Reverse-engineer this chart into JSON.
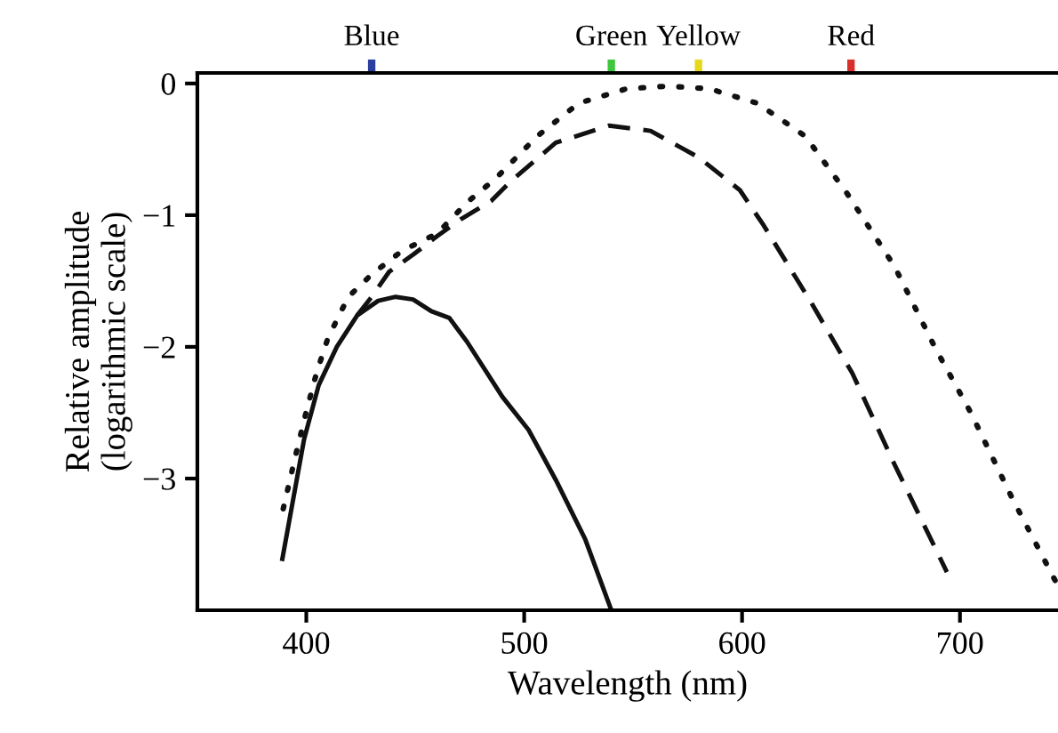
{
  "chart_data": {
    "type": "line",
    "xlabel": "Wavelength (nm)",
    "ylabel": "Relative amplitude\n(logarithmic scale)",
    "xlim": [
      350,
      745
    ],
    "xticks": [
      400,
      500,
      600,
      700
    ],
    "ylim": [
      -4,
      0.08
    ],
    "yticks": [
      0,
      {
        "value": -1,
        "label": "−1"
      },
      {
        "value": -2,
        "label": "−2"
      },
      {
        "value": -3,
        "label": "−3"
      }
    ],
    "ref_lines": [
      {
        "axis": "x",
        "value": 430,
        "label": "Blue",
        "color": "#2b3f9e"
      },
      {
        "axis": "x",
        "value": 540,
        "label": "Green",
        "color": "#3fc63f"
      },
      {
        "axis": "x",
        "value": 580,
        "label": "Yellow",
        "color": "#e6d81e"
      },
      {
        "axis": "x",
        "value": 650,
        "label": "Red",
        "color": "#d8302a"
      }
    ],
    "grid": false,
    "legend": false,
    "marker": "none",
    "series": [
      {
        "color": "#111111",
        "line_style": "solid",
        "x": [
          389,
          399,
          405.7,
          414,
          423.4,
          433,
          441,
          449,
          457.4,
          465.6,
          473.7,
          490,
          502,
          514.5,
          528,
          540
        ],
        "values": [
          -3.61,
          -2.7,
          -2.29,
          -2.0,
          -1.76,
          -1.65,
          -1.62,
          -1.64,
          -1.73,
          -1.78,
          -1.96,
          -2.38,
          -2.63,
          -3.01,
          -3.46,
          -4.0
        ]
      },
      {
        "color": "#111111",
        "line_style": "dashed",
        "x": [
          423.4,
          430,
          438,
          449,
          460,
          471,
          485,
          494,
          514.5,
          539,
          558,
          580,
          599,
          610,
          631.6,
          650.6,
          669.6,
          694
        ],
        "values": [
          -1.76,
          -1.62,
          -1.43,
          -1.3,
          -1.16,
          -1.03,
          -0.89,
          -0.74,
          -0.45,
          -0.32,
          -0.36,
          -0.56,
          -0.81,
          -1.08,
          -1.66,
          -2.2,
          -2.88,
          -3.71
        ]
      },
      {
        "color": "#111111",
        "line_style": "dotted",
        "x": [
          389.4,
          395,
          400,
          405,
          410,
          419.3,
          430,
          444,
          460,
          474,
          487,
          506,
          525,
          547,
          566,
          585,
          607,
          629,
          648,
          670,
          689,
          705,
          724,
          744.5
        ],
        "values": [
          -3.23,
          -2.83,
          -2.49,
          -2.18,
          -1.93,
          -1.62,
          -1.45,
          -1.27,
          -1.14,
          -0.9,
          -0.72,
          -0.4,
          -0.15,
          -0.04,
          -0.02,
          -0.04,
          -0.15,
          -0.4,
          -0.83,
          -1.39,
          -2.02,
          -2.5,
          -3.15,
          -3.8
        ]
      }
    ]
  }
}
